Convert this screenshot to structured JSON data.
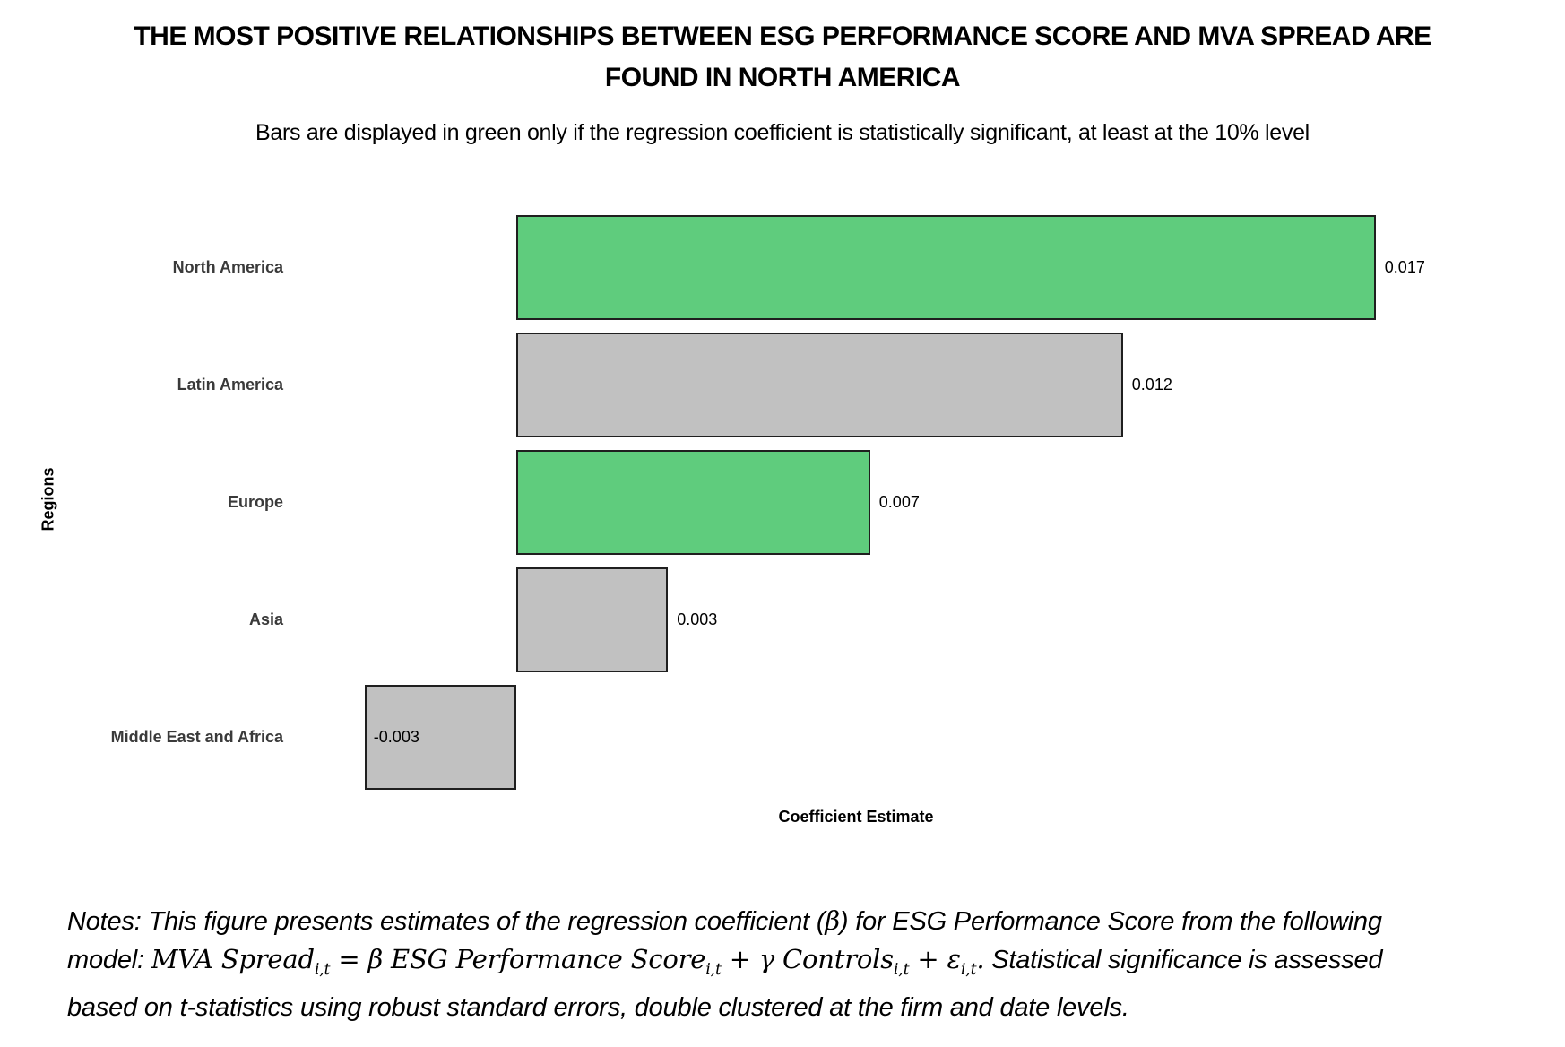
{
  "figure": {
    "title_line1": "THE MOST POSITIVE RELATIONSHIPS BETWEEN ESG PERFORMANCE SCORE AND MVA SPREAD ARE",
    "title_line2": "FOUND IN NORTH AMERICA",
    "subtitle": "Bars are displayed in green only if the regression coefficient is statistically significant, at least at the 10% level"
  },
  "chart_data": {
    "type": "bar",
    "orientation": "horizontal",
    "title": "THE MOST POSITIVE RELATIONSHIPS BETWEEN ESG PERFORMANCE SCORE AND MVA SPREAD ARE FOUND IN NORTH AMERICA",
    "subtitle": "Bars are displayed in green only if the regression coefficient is statistically significant, at least at the 10% level",
    "categories": [
      "North America",
      "Latin America",
      "Europe",
      "Asia",
      "Middle East and Africa"
    ],
    "values": [
      0.017,
      0.012,
      0.007,
      0.003,
      -0.003
    ],
    "value_labels": [
      "0.017",
      "0.012",
      "0.007",
      "0.003",
      "-0.003"
    ],
    "significant": [
      true,
      false,
      true,
      false,
      false
    ],
    "ylabel": "Regions",
    "xlabel": "Coefficient Estimate",
    "xlim": [
      -0.004,
      0.0205
    ],
    "grid": false,
    "legend": "none",
    "colors": {
      "significant": "#5FCC7D",
      "not_significant": "#C1C1C1",
      "bar_border": "#1F1F1F"
    }
  },
  "notes": {
    "lines": [
      [
        {
          "text": "Notes: This figure presents estimates of the regression coefficient (",
          "style": "sans"
        },
        {
          "text": "β",
          "style": "math"
        },
        {
          "text": ") for ESG Performance Score from the following",
          "style": "sans"
        }
      ],
      [
        {
          "text": "model: ",
          "style": "sans"
        },
        {
          "text": "MVA Spread",
          "style": "math"
        },
        {
          "text": "i,t",
          "style": "sub"
        },
        {
          "text": " = β ESG Performance Score",
          "style": "math"
        },
        {
          "text": "i,t",
          "style": "sub"
        },
        {
          "text": " + γ Controls",
          "style": "math"
        },
        {
          "text": "i,t",
          "style": "sub"
        },
        {
          "text": " + ε",
          "style": "math"
        },
        {
          "text": "i,t",
          "style": "sub"
        },
        {
          "text": ".",
          "style": "math"
        },
        {
          "text": " Statistical significance is assessed",
          "style": "sans"
        }
      ],
      [
        {
          "text": "based on t-statistics using robust standard errors, double clustered at the firm and date levels.",
          "style": "sans"
        }
      ]
    ]
  }
}
